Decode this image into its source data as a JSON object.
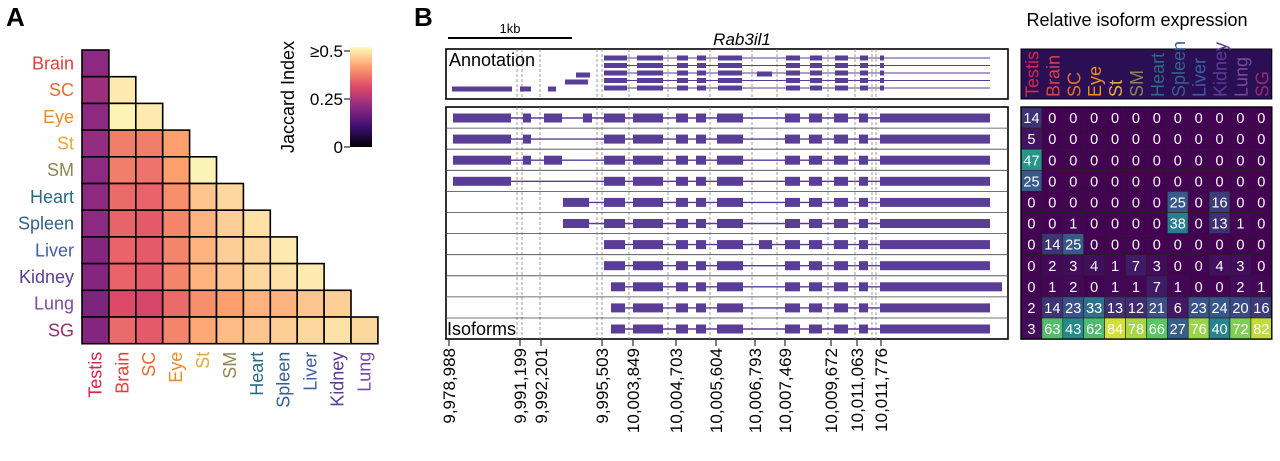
{
  "panels": {
    "A": {
      "label": "A"
    },
    "B": {
      "label": "B"
    }
  },
  "colors": {
    "track": "#5a3d96",
    "grid": "#555555",
    "tissues": {
      "Testis": "#d8234e",
      "Brain": "#e1403d",
      "SC": "#ea6a2c",
      "Eye": "#f08a24",
      "St": "#e9a838",
      "SM": "#8e8451",
      "Heart": "#2a6a82",
      "Spleen": "#36608f",
      "Liver": "#3e5ea3",
      "Kidney": "#5b3c95",
      "Lung": "#7a4a9c",
      "SG": "#9d2a6b"
    }
  },
  "chart_data": [
    {
      "type": "heatmap",
      "panel": "A",
      "rows": [
        "Brain",
        "SC",
        "Eye",
        "St",
        "SM",
        "Heart",
        "Spleen",
        "Liver",
        "Kidney",
        "Lung",
        "SG"
      ],
      "columns": [
        "Testis",
        "Brain",
        "SC",
        "Eye",
        "St",
        "SM",
        "Heart",
        "Spleen",
        "Liver",
        "Kidney",
        "Lung"
      ],
      "values": [
        [
          0.2
        ],
        [
          0.22,
          0.48
        ],
        [
          0.2,
          0.49,
          0.48
        ],
        [
          0.21,
          0.36,
          0.36,
          0.4
        ],
        [
          0.2,
          0.36,
          0.35,
          0.4,
          0.49
        ],
        [
          0.2,
          0.34,
          0.33,
          0.38,
          0.44,
          0.46
        ],
        [
          0.2,
          0.33,
          0.32,
          0.37,
          0.42,
          0.45,
          0.47
        ],
        [
          0.19,
          0.33,
          0.32,
          0.37,
          0.42,
          0.45,
          0.46,
          0.48
        ],
        [
          0.19,
          0.33,
          0.32,
          0.37,
          0.42,
          0.44,
          0.46,
          0.47,
          0.48
        ],
        [
          0.18,
          0.3,
          0.29,
          0.34,
          0.38,
          0.4,
          0.42,
          0.42,
          0.44,
          0.45
        ],
        [
          0.19,
          0.34,
          0.32,
          0.37,
          0.41,
          0.43,
          0.44,
          0.45,
          0.46,
          0.47,
          0.46
        ]
      ],
      "colorbar": {
        "title": "Jaccard Index",
        "ticks": [
          "≥0.5",
          "0.25",
          "0"
        ],
        "range": [
          0,
          0.5
        ]
      }
    },
    {
      "type": "gene-structure",
      "panel": "B",
      "title": "Rab3il1",
      "scale_bar": "1kb",
      "annotation_label": "Annotation",
      "isoforms_label": "Isoforms",
      "coordinates": [
        "9,978,988",
        "9,991,199",
        "9,992,201",
        "9,995,503",
        "10,003,849",
        "10,004,703",
        "10,005,604",
        "10,006,793",
        "10,007,469",
        "10,009,672",
        "10,011,063",
        "10,011,776"
      ],
      "isoform_count": 11
    },
    {
      "type": "table",
      "panel": "B",
      "title": "Relative isoform expression",
      "columns": [
        "Testis",
        "Brain",
        "SC",
        "Eye",
        "St",
        "SM",
        "Heart",
        "Spleen",
        "Liver",
        "Kidney",
        "Lung",
        "SG"
      ],
      "values": [
        [
          14,
          0,
          0,
          0,
          0,
          0,
          0,
          0,
          0,
          0,
          0,
          0
        ],
        [
          5,
          0,
          0,
          0,
          0,
          0,
          0,
          0,
          0,
          0,
          0,
          0
        ],
        [
          47,
          0,
          0,
          0,
          0,
          0,
          0,
          0,
          0,
          0,
          0,
          0
        ],
        [
          25,
          0,
          0,
          0,
          0,
          0,
          0,
          0,
          0,
          0,
          0,
          0
        ],
        [
          0,
          0,
          0,
          0,
          0,
          0,
          0,
          25,
          0,
          16,
          0,
          0
        ],
        [
          0,
          0,
          1,
          0,
          0,
          0,
          0,
          38,
          0,
          13,
          1,
          0
        ],
        [
          0,
          14,
          25,
          0,
          0,
          0,
          0,
          0,
          0,
          0,
          0,
          0
        ],
        [
          0,
          2,
          3,
          4,
          1,
          7,
          3,
          0,
          0,
          4,
          3,
          0
        ],
        [
          0,
          1,
          2,
          0,
          1,
          1,
          7,
          1,
          0,
          0,
          2,
          1
        ],
        [
          2,
          14,
          23,
          33,
          13,
          12,
          21,
          6,
          23,
          24,
          20,
          16
        ],
        [
          3,
          63,
          43,
          62,
          84,
          78,
          66,
          27,
          76,
          40,
          72,
          82
        ]
      ]
    }
  ]
}
